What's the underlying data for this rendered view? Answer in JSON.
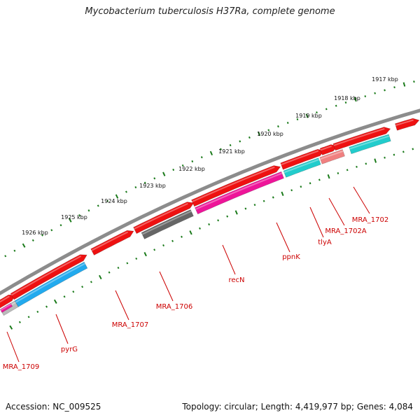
{
  "title": "Mycobacterium tuberculosis H37Ra, complete genome",
  "footer": {
    "accession": "Accession: NC_009525",
    "summary": "Topology: circular; Length: 4,419,977 bp; Genes: 4,084"
  },
  "kbp_labels": [
    "1917 kbp",
    "1918 kbp",
    "1919 kbp",
    "1920 kbp",
    "1921 kbp",
    "1922 kbp",
    "1923 kbp",
    "1924 kbp",
    "1925 kbp",
    "1926 kbp"
  ],
  "gene_labels": [
    "MRA_1702",
    "MRA_1702A",
    "tlyA",
    "ppnK",
    "recN",
    "MRA_1706",
    "MRA_1707",
    "pyrG",
    "MRA_1709"
  ],
  "colors": {
    "backbone": "#8c8c8c",
    "forward_gene": "#ee1111",
    "tick": "#1a7a1a",
    "label": "#cc0000",
    "cyan": "#22cccc",
    "magenta": "#ee1599",
    "gray_gene": "#666666",
    "salmon": "#f08080",
    "blue": "#22aaee",
    "light": "#bbbbbb"
  }
}
